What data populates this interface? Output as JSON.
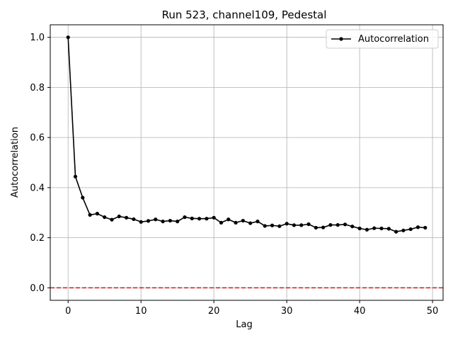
{
  "chart_data": {
    "type": "line",
    "title": "Run 523, channel109, Pedestal",
    "xlabel": "Lag",
    "ylabel": "Autocorrelation",
    "xlim": [
      -2.45,
      51.45
    ],
    "ylim": [
      -0.05,
      1.05
    ],
    "xticks": [
      0,
      10,
      20,
      30,
      40,
      50
    ],
    "yticks": [
      0.0,
      0.2,
      0.4,
      0.6,
      0.8,
      1.0
    ],
    "xtick_labels": [
      "0",
      "10",
      "20",
      "30",
      "40",
      "50"
    ],
    "ytick_labels": [
      "0.0",
      "0.2",
      "0.4",
      "0.6",
      "0.8",
      "1.0"
    ],
    "grid": true,
    "legend": {
      "position": "top-right"
    },
    "reference_line": {
      "y": 0.0,
      "color": "#d62728",
      "style": "dashed"
    },
    "series": [
      {
        "name": "Autocorrelation",
        "color": "#000000",
        "marker": "circle",
        "x": [
          0,
          1,
          2,
          3,
          4,
          5,
          6,
          7,
          8,
          9,
          10,
          11,
          12,
          13,
          14,
          15,
          16,
          17,
          18,
          19,
          20,
          21,
          22,
          23,
          24,
          25,
          26,
          27,
          28,
          29,
          30,
          31,
          32,
          33,
          34,
          35,
          36,
          37,
          38,
          39,
          40,
          41,
          42,
          43,
          44,
          45,
          46,
          47,
          48,
          49
        ],
        "y": [
          1.0,
          0.444,
          0.36,
          0.291,
          0.296,
          0.282,
          0.272,
          0.285,
          0.28,
          0.274,
          0.263,
          0.267,
          0.273,
          0.265,
          0.268,
          0.265,
          0.282,
          0.277,
          0.276,
          0.276,
          0.28,
          0.26,
          0.273,
          0.26,
          0.268,
          0.258,
          0.265,
          0.247,
          0.249,
          0.246,
          0.256,
          0.25,
          0.25,
          0.254,
          0.24,
          0.241,
          0.251,
          0.251,
          0.253,
          0.245,
          0.237,
          0.232,
          0.238,
          0.237,
          0.236,
          0.224,
          0.229,
          0.234,
          0.242,
          0.24
        ]
      }
    ]
  }
}
